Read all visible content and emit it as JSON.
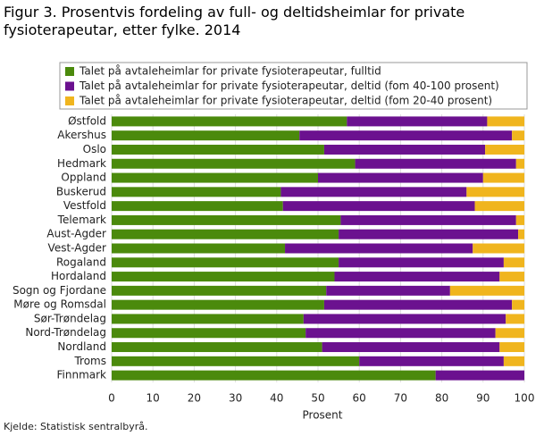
{
  "chart_data": {
    "type": "stacked-bar-horizontal",
    "title": "Figur 3. Prosentvis fordeling av full- og deltidsheimlar for private fysioterapeutar, etter fylke. 2014",
    "categories": [
      "Østfold",
      "Akershus",
      "Oslo",
      "Hedmark",
      "Oppland",
      "Buskerud",
      "Vestfold",
      "Telemark",
      "Aust-Agder",
      "Vest-Agder",
      "Rogaland",
      "Hordaland",
      "Sogn og Fjordane",
      "Møre og Romsdal",
      "Sør-Trøndelag",
      "Nord-Trøndelag",
      "Nordland",
      "Troms",
      "Finnmark"
    ],
    "series": [
      {
        "name": "Talet på avtaleheimlar for private fysioterapeutar, fulltid",
        "color": "#4b8a0c",
        "values": [
          57,
          45.5,
          51.5,
          59,
          50,
          41,
          41.5,
          55.5,
          55,
          42,
          55,
          54,
          52,
          51.5,
          46.5,
          47,
          51,
          60,
          78.5
        ]
      },
      {
        "name": "Talet på avtaleheimlar for private fysioterapeutar, deltid (fom 40-100 prosent)",
        "color": "#6b118f",
        "values": [
          34,
          51.5,
          39,
          39,
          40,
          45,
          46.5,
          42.5,
          43.5,
          45.5,
          40,
          40,
          30,
          45.5,
          49,
          46,
          43,
          35,
          21.5
        ]
      },
      {
        "name": "Talet på avtaleheimlar for private fysioterapeutar, deltid (fom 20-40 prosent)",
        "color": "#f0b51e",
        "values": [
          9,
          3,
          9.5,
          2,
          10,
          14,
          12,
          2,
          1.5,
          12.5,
          5,
          6,
          18,
          3,
          4.5,
          7,
          6,
          5,
          0
        ]
      }
    ],
    "xlim": [
      0,
      100
    ],
    "xticks": [
      0,
      10,
      20,
      30,
      40,
      50,
      60,
      70,
      80,
      90,
      100
    ],
    "grid": true,
    "xlabel": "Prosent",
    "source": "Kjelde: Statistisk sentralbyrå."
  }
}
